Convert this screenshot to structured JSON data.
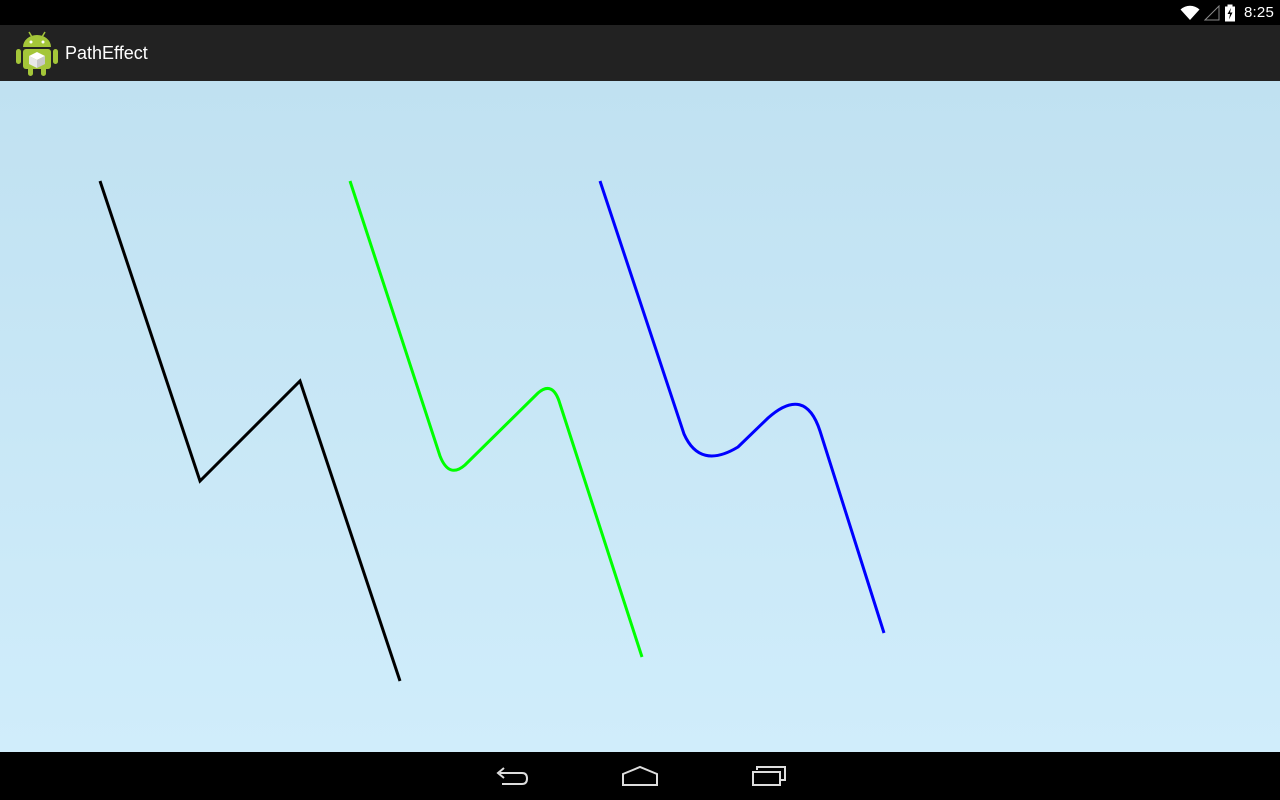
{
  "status_bar": {
    "time": "8:25",
    "icons": [
      "wifi-icon",
      "signal-icon",
      "battery-charging-icon"
    ]
  },
  "action_bar": {
    "title": "PathEffect",
    "icon": "android-robot-icon"
  },
  "canvas": {
    "background_top": "#c0e1f1",
    "background_bottom": "#d0edfb",
    "paths": [
      {
        "name": "plain-path",
        "color": "#000000",
        "effect": "none"
      },
      {
        "name": "corner-path-small",
        "color": "#00ff00",
        "effect": "corner-small"
      },
      {
        "name": "corner-path-large",
        "color": "#0000ff",
        "effect": "corner-large"
      }
    ]
  },
  "navigation_bar": {
    "buttons": [
      "back-icon",
      "home-icon",
      "recent-apps-icon"
    ]
  }
}
